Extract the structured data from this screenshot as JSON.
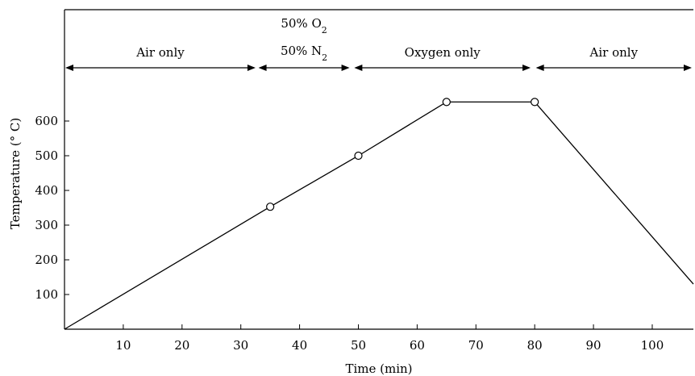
{
  "chart_data": {
    "type": "line",
    "title": "",
    "xlabel": "Time (min)",
    "ylabel": "Temperature (° C)",
    "xlim": [
      0,
      107
    ],
    "ylim": [
      0,
      700
    ],
    "x_ticks": [
      10,
      20,
      30,
      40,
      50,
      60,
      70,
      80,
      90,
      100
    ],
    "y_ticks": [
      100,
      200,
      300,
      400,
      500,
      600
    ],
    "grid": false,
    "series": [
      {
        "points": [
          {
            "x": 0,
            "y": 0
          },
          {
            "x": 35,
            "y": 353
          },
          {
            "x": 50,
            "y": 500
          },
          {
            "x": 65,
            "y": 655
          },
          {
            "x": 80,
            "y": 655
          },
          {
            "x": 107,
            "y": 130
          }
        ],
        "markers": [
          {
            "x": 35,
            "y": 353
          },
          {
            "x": 50,
            "y": 500
          },
          {
            "x": 65,
            "y": 655
          },
          {
            "x": 80,
            "y": 655
          }
        ]
      }
    ],
    "phases": [
      {
        "label_lines": [
          "Air only"
        ],
        "start": 0,
        "end": 32.5
      },
      {
        "label_lines": [
          "50% O2",
          "50% N2"
        ],
        "start": 33,
        "end": 48.5
      },
      {
        "label_lines": [
          "Oxygen only"
        ],
        "start": 49.3,
        "end": 79.3
      },
      {
        "label_lines": [
          "Air only"
        ],
        "start": 80.2,
        "end": 107
      }
    ]
  }
}
